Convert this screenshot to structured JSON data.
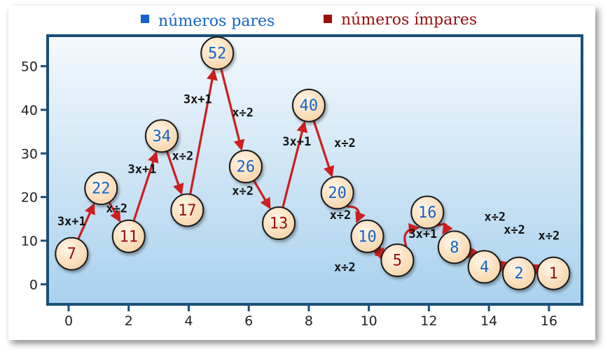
{
  "legend": {
    "even_label": "números pares",
    "odd_label": "números ímpares",
    "even_color": "#1463c8",
    "odd_color": "#990e0e"
  },
  "colors": {
    "frame": "#1a4f76",
    "plot_bg_top": "#f4f9fd",
    "plot_bg_bottom": "#a9d1ee",
    "node_fill": "#fbe6c8",
    "node_stroke": "#1a1a1a",
    "arrow": "#cc1f1f"
  },
  "chart_data": {
    "type": "scatter",
    "x_ticks": [
      "0",
      "2",
      "4",
      "6",
      "8",
      "10",
      "12",
      "14",
      "16"
    ],
    "y_ticks": [
      "0",
      "10",
      "20",
      "30",
      "40",
      "50"
    ],
    "xlim": [
      -0.7,
      17.1
    ],
    "ylim": [
      -4.6,
      57
    ],
    "points": [
      {
        "label": "7",
        "x": 0.1,
        "y": 7,
        "parity": "odd"
      },
      {
        "label": "22",
        "x": 1.08,
        "y": 22,
        "parity": "even"
      },
      {
        "label": "11",
        "x": 2.0,
        "y": 11,
        "parity": "odd"
      },
      {
        "label": "34",
        "x": 3.1,
        "y": 34,
        "parity": "even"
      },
      {
        "label": "17",
        "x": 3.95,
        "y": 17,
        "parity": "odd"
      },
      {
        "label": "52",
        "x": 4.95,
        "y": 53,
        "parity": "even"
      },
      {
        "label": "26",
        "x": 5.9,
        "y": 27,
        "parity": "even"
      },
      {
        "label": "13",
        "x": 7.0,
        "y": 14,
        "parity": "odd"
      },
      {
        "label": "40",
        "x": 8.0,
        "y": 41,
        "parity": "even"
      },
      {
        "label": "20",
        "x": 8.95,
        "y": 21,
        "parity": "even"
      },
      {
        "label": "10",
        "x": 9.95,
        "y": 11,
        "parity": "even"
      },
      {
        "label": "5",
        "x": 10.95,
        "y": 5.5,
        "parity": "odd"
      },
      {
        "label": "16",
        "x": 11.95,
        "y": 16.5,
        "parity": "even"
      },
      {
        "label": "8",
        "x": 12.85,
        "y": 8.5,
        "parity": "even"
      },
      {
        "label": "4",
        "x": 13.85,
        "y": 4,
        "parity": "even"
      },
      {
        "label": "2",
        "x": 15.0,
        "y": 2.5,
        "parity": "even"
      },
      {
        "label": "1",
        "x": 16.15,
        "y": 2.5,
        "parity": "odd"
      }
    ],
    "operations": [
      {
        "label": "3x+1",
        "x": 0.1,
        "y": 13.5
      },
      {
        "label": "x÷2",
        "x": 1.6,
        "y": 16.5
      },
      {
        "label": "3x+1",
        "x": 2.45,
        "y": 25.5
      },
      {
        "label": "x÷2",
        "x": 3.8,
        "y": 28.5
      },
      {
        "label": "3x+1",
        "x": 4.3,
        "y": 41.5
      },
      {
        "label": "x÷2",
        "x": 5.8,
        "y": 38.5
      },
      {
        "label": "3x+1",
        "x": 7.6,
        "y": 31.8
      },
      {
        "label": "x÷2",
        "x": 9.2,
        "y": 31.5
      },
      {
        "label": "x÷2",
        "x": 5.8,
        "y": 20.5
      },
      {
        "label": "x÷2",
        "x": 9.05,
        "y": 15.0
      },
      {
        "label": "x÷2",
        "x": 9.2,
        "y": 3.0
      },
      {
        "label": "3x+1",
        "x": 11.8,
        "y": 10.6
      },
      {
        "label": "x÷2",
        "x": 14.2,
        "y": 14.6
      },
      {
        "label": "x÷2",
        "x": 14.85,
        "y": 11.6
      },
      {
        "label": "x÷2",
        "x": 16.0,
        "y": 10.2
      }
    ]
  }
}
